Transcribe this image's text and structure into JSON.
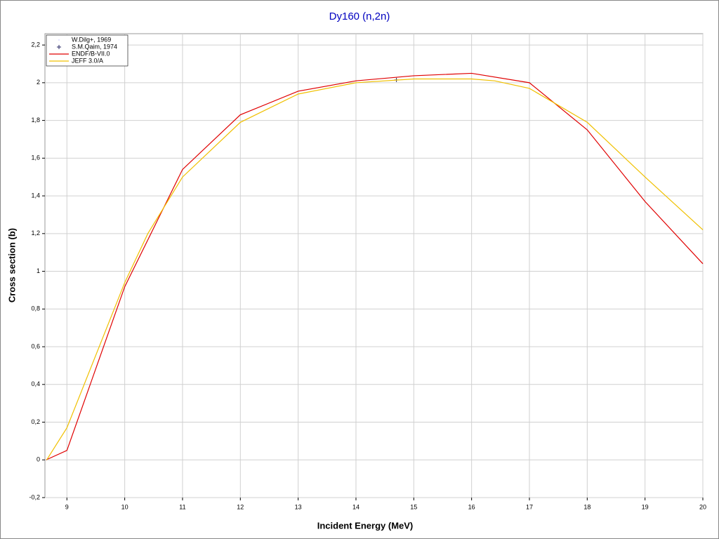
{
  "chart_data": {
    "type": "line",
    "title": "Dy160 (n,2n)",
    "x_label": "Incident Energy (MeV)",
    "y_label": "Cross section (b)",
    "xlim": [
      8.62,
      20
    ],
    "ylim": [
      -0.2,
      2.26
    ],
    "xticks": [
      9,
      10,
      11,
      12,
      13,
      14,
      15,
      16,
      17,
      18,
      19,
      20
    ],
    "yticks": [
      {
        "value": -0.2,
        "label": "-0,2"
      },
      0,
      {
        "value": 0.2,
        "label": "0,2"
      },
      {
        "value": 0.4,
        "label": "0,4"
      },
      {
        "value": 0.6,
        "label": "0,6"
      },
      {
        "value": 0.8,
        "label": "0,8"
      },
      1,
      {
        "value": 1.2,
        "label": "1,2"
      },
      {
        "value": 1.4,
        "label": "1,4"
      },
      {
        "value": 1.6,
        "label": "1,6"
      },
      {
        "value": 1.8,
        "label": "1,8"
      },
      2,
      {
        "value": 2.2,
        "label": "2,2"
      }
    ],
    "grid": true,
    "legend": "top-left",
    "series": [
      {
        "name": "W.Dilg+, 1969",
        "color": "#9090ff",
        "style": "dot",
        "x": [],
        "values": []
      },
      {
        "name": "S.M.Qaim, 1974",
        "color": "#202060",
        "style": "plus",
        "x": [
          14.7
        ],
        "values": [
          2.015
        ]
      },
      {
        "name": "ENDF/B-VII.0",
        "color": "#e00000",
        "style": "line",
        "x": [
          8.64,
          9,
          10,
          11,
          12,
          13,
          14,
          15,
          16,
          17,
          18,
          19,
          20
        ],
        "values": [
          0,
          0.05,
          0.918,
          1.54,
          1.83,
          1.955,
          2.01,
          2.037,
          2.05,
          2.0,
          1.75,
          1.37,
          1.04
        ]
      },
      {
        "name": "JEFF 3.0/A",
        "color": "#f0c000",
        "style": "line",
        "x": [
          8.65,
          9,
          10,
          10.4,
          11,
          12,
          13,
          14,
          15,
          16,
          16.4,
          17,
          18,
          19,
          20
        ],
        "values": [
          0,
          0.17,
          0.94,
          1.2,
          1.5,
          1.79,
          1.94,
          2.0,
          2.02,
          2.02,
          2.01,
          1.97,
          1.79,
          1.5,
          1.22
        ]
      }
    ]
  }
}
